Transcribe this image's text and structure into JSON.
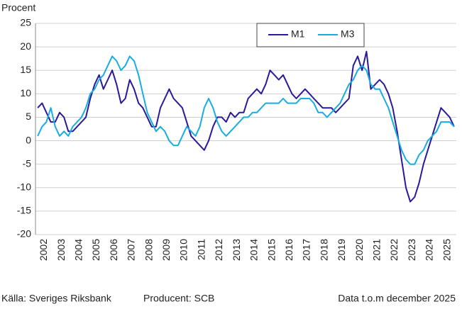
{
  "chart_data": {
    "type": "line",
    "y_label": "Procent",
    "source": "Källa: Sveriges Riksbank",
    "producer": "Producent: SCB",
    "note": "Data t.o.m december 2025",
    "categories": [
      null,
      null,
      "2002",
      null,
      null,
      null,
      "2003",
      null,
      null,
      null,
      "2004",
      null,
      null,
      null,
      "2005",
      null,
      null,
      null,
      "2006",
      null,
      null,
      null,
      "2007",
      null,
      null,
      null,
      "2008",
      null,
      null,
      null,
      "2009",
      null,
      null,
      null,
      "2010",
      null,
      null,
      null,
      "2011",
      null,
      null,
      null,
      "2012",
      null,
      null,
      null,
      "2013",
      null,
      null,
      null,
      "2014",
      null,
      null,
      null,
      "2015",
      null,
      null,
      null,
      "2016",
      null,
      null,
      null,
      "2017",
      null,
      null,
      null,
      "2018",
      null,
      null,
      null,
      "2019",
      null,
      null,
      null,
      "2020",
      null,
      null,
      null,
      "2021",
      null,
      null,
      null,
      "2022",
      null,
      null,
      null,
      "2023",
      null,
      null,
      null,
      "2024",
      null,
      null,
      null,
      "2025",
      null
    ],
    "series": [
      {
        "name": "M1",
        "color": "#2a1a9a",
        "values": [
          7,
          8,
          6,
          4,
          4,
          6,
          5,
          2,
          2,
          3,
          4,
          5,
          9,
          12,
          14,
          11,
          13,
          15,
          12,
          8,
          9,
          13,
          11,
          8,
          7,
          5,
          3,
          3,
          7,
          9,
          11,
          9,
          8,
          7,
          4,
          1,
          0,
          -1,
          -2,
          0,
          3,
          5,
          5,
          4,
          6,
          5,
          6,
          6,
          9,
          10,
          11,
          10,
          12,
          15,
          14,
          13,
          14,
          12,
          10,
          9,
          10,
          11,
          10,
          9,
          8,
          7,
          7,
          7,
          6,
          7,
          8,
          9,
          16,
          18,
          15,
          19,
          11,
          12,
          13,
          12,
          10,
          7,
          2,
          -4,
          -10,
          -13,
          -12,
          -9,
          -5,
          -2,
          1,
          4,
          7,
          6,
          5,
          3
        ]
      },
      {
        "name": "M3",
        "color": "#17ade0",
        "values": [
          1,
          3,
          4,
          7,
          3,
          1,
          2,
          1,
          3,
          4,
          5,
          7,
          10,
          11,
          13,
          14,
          16,
          18,
          17,
          15,
          16,
          18,
          17,
          14,
          10,
          6,
          4,
          2,
          3,
          2,
          0,
          -1,
          -1,
          1,
          3,
          2,
          1,
          3,
          7,
          9,
          7,
          4,
          2,
          1,
          2,
          3,
          4,
          5,
          5,
          6,
          6,
          7,
          8,
          8,
          8,
          8,
          9,
          8,
          8,
          8,
          9,
          9,
          9,
          8,
          6,
          6,
          5,
          6,
          7,
          8,
          10,
          12,
          13,
          15,
          16,
          15,
          12,
          11,
          11,
          9,
          7,
          4,
          1,
          -2,
          -4,
          -5,
          -5,
          -3,
          -2,
          0,
          1,
          2,
          4,
          4,
          4,
          3
        ]
      }
    ],
    "ylim": [
      -20,
      25
    ],
    "yticks": [
      -20,
      -15,
      -10,
      -5,
      0,
      5,
      10,
      15,
      20,
      25
    ],
    "grid": true
  }
}
